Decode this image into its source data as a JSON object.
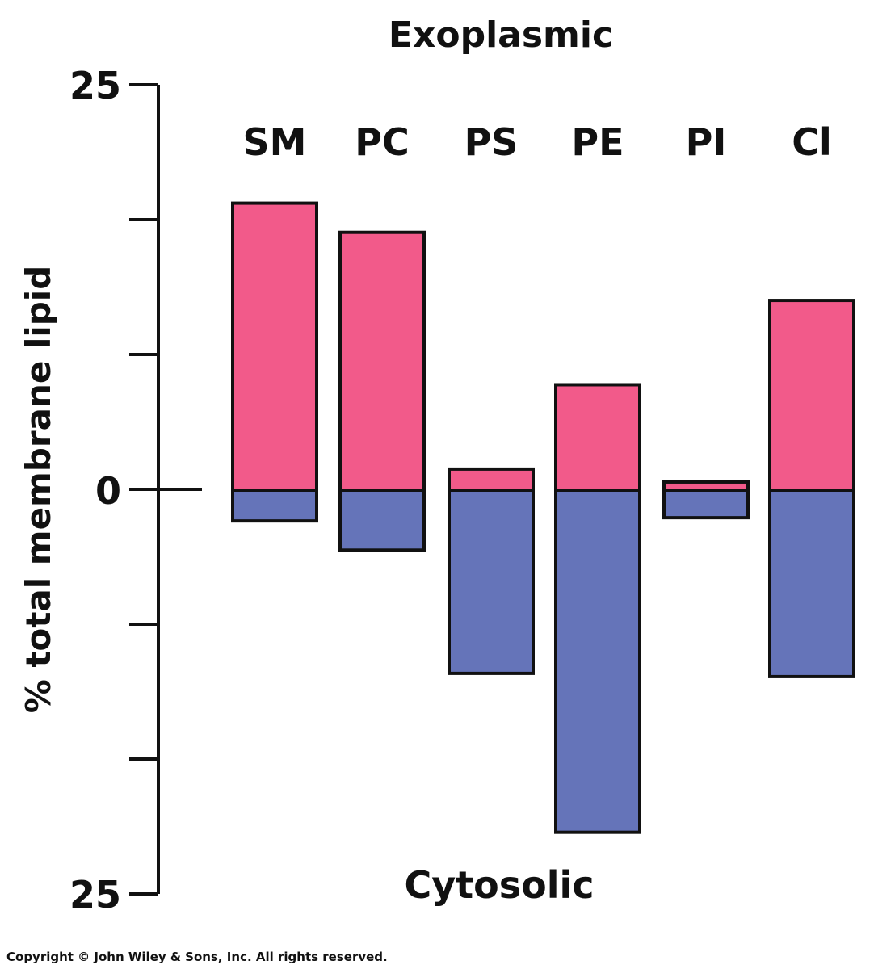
{
  "chart_data": {
    "type": "bar",
    "stacked_diverging": true,
    "top_label": "Exoplasmic",
    "bottom_label": "Cytosolic",
    "ylabel": "% total membrane lipid",
    "ylim": [
      -25,
      25
    ],
    "yticks_labeled": [
      {
        "value": 25,
        "label": "25"
      },
      {
        "value": 0,
        "label": "0"
      },
      {
        "value": -25,
        "label": "25"
      }
    ],
    "categories": [
      "SM",
      "PC",
      "PS",
      "PE",
      "PI",
      "Cl"
    ],
    "series": [
      {
        "name": "Exoplasmic",
        "color": "#f25a8a",
        "values": [
          17.7,
          15.9,
          1.3,
          6.5,
          0.5,
          11.7
        ]
      },
      {
        "name": "Cytosolic",
        "color": "#6574b9",
        "values": [
          1.9,
          3.7,
          11.3,
          21.1,
          1.7,
          11.5
        ]
      }
    ],
    "grid": false
  },
  "copyright": "Copyright © John Wiley & Sons, Inc. All rights reserved."
}
